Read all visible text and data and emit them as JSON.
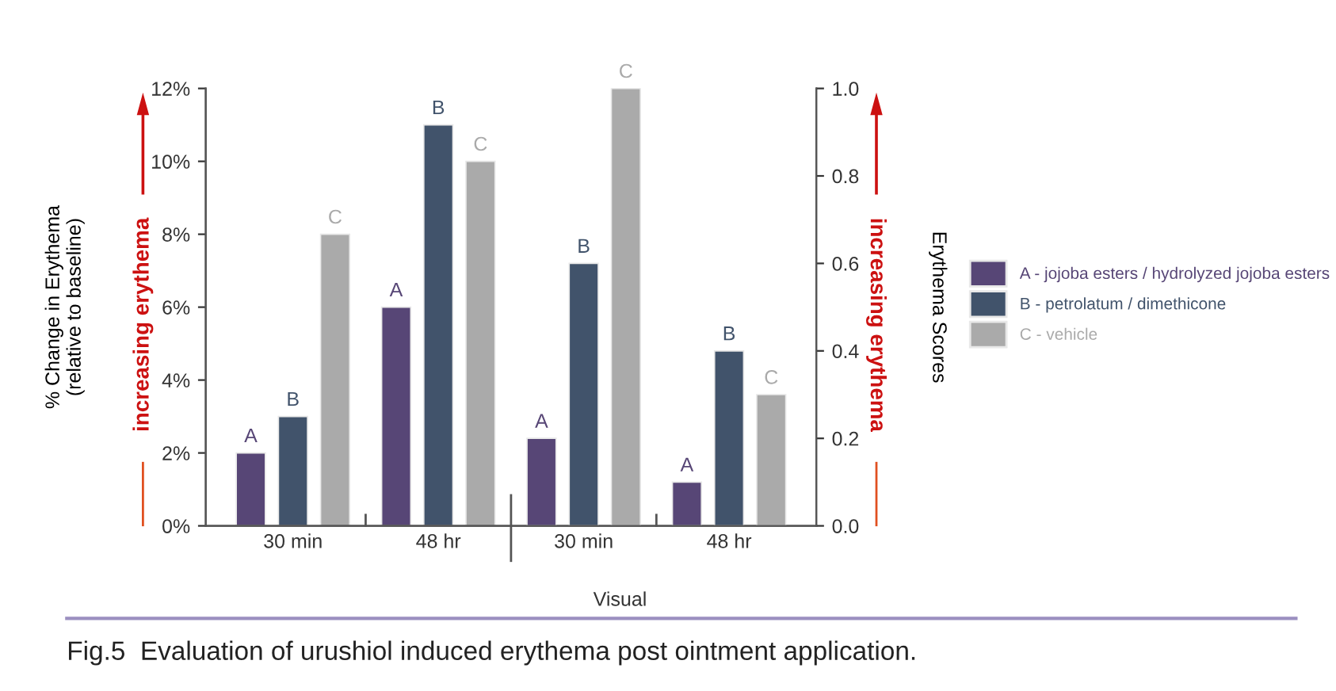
{
  "chart_data": {
    "type": "bar",
    "categories": [
      "30 min",
      "48 hr",
      "30 min",
      "48 hr"
    ],
    "ylabel": "% Change in Erythema\n(relative to baseline)",
    "y2label": "Erythema Scores",
    "series": [
      {
        "name": "A - jojoba esters / hydrolyzed jojoba esters",
        "color": "#574676",
        "values": [
          2,
          6,
          null,
          null
        ],
        "value_labels": [
          "A",
          "A",
          null,
          null
        ]
      },
      {
        "name": "B - petrolatum / dimethicone",
        "color": "#41536b",
        "values": [
          3,
          11,
          null,
          null
        ],
        "value_labels": [
          "B",
          "B",
          null,
          null
        ]
      },
      {
        "name": "C - vehicle",
        "color": "#aaaaaa",
        "values": [
          8,
          10,
          null,
          null
        ],
        "value_labels": [
          "C",
          "C",
          null,
          null
        ]
      },
      {
        "color": "#574676",
        "axis": "y2",
        "values": [
          null,
          null,
          0.2,
          0.1
        ],
        "value_labels": [
          null,
          null,
          "A",
          "A"
        ]
      },
      {
        "color": "#41536b",
        "axis": "y2",
        "values": [
          null,
          null,
          0.6,
          0.4
        ],
        "value_labels": [
          null,
          null,
          "B",
          "B"
        ]
      },
      {
        "color": "#aaaaaa",
        "axis": "y2",
        "values": [
          null,
          null,
          1.0,
          0.3
        ],
        "value_labels": [
          null,
          null,
          "C",
          "C"
        ]
      }
    ],
    "ylim": [
      0,
      12
    ],
    "yticks": [
      {
        "value": 0,
        "label": "0%"
      },
      {
        "value": 2,
        "label": "2%"
      },
      {
        "value": 4,
        "label": "4%"
      },
      {
        "value": 6,
        "label": "6%"
      },
      {
        "value": 8,
        "label": "8%"
      },
      {
        "value": 10,
        "label": "10%"
      },
      {
        "value": 12,
        "label": "12%"
      }
    ],
    "y2lim": [
      0,
      1
    ],
    "y2ticks": [
      {
        "value": 0,
        "label": "0.0"
      },
      {
        "value": 0.2,
        "label": "0.2"
      },
      {
        "value": 0.4,
        "label": "0.4"
      },
      {
        "value": 0.6,
        "label": "0.6"
      },
      {
        "value": 0.8,
        "label": "0.8"
      },
      {
        "value": 1,
        "label": "1.0"
      }
    ],
    "annotations": [
      "Visual",
      "increasing erythema",
      "increasing erythema",
      "Fig.5  Evaluation of urushiol induced erythema post ointment application."
    ],
    "legend": "right",
    "grid": false
  }
}
